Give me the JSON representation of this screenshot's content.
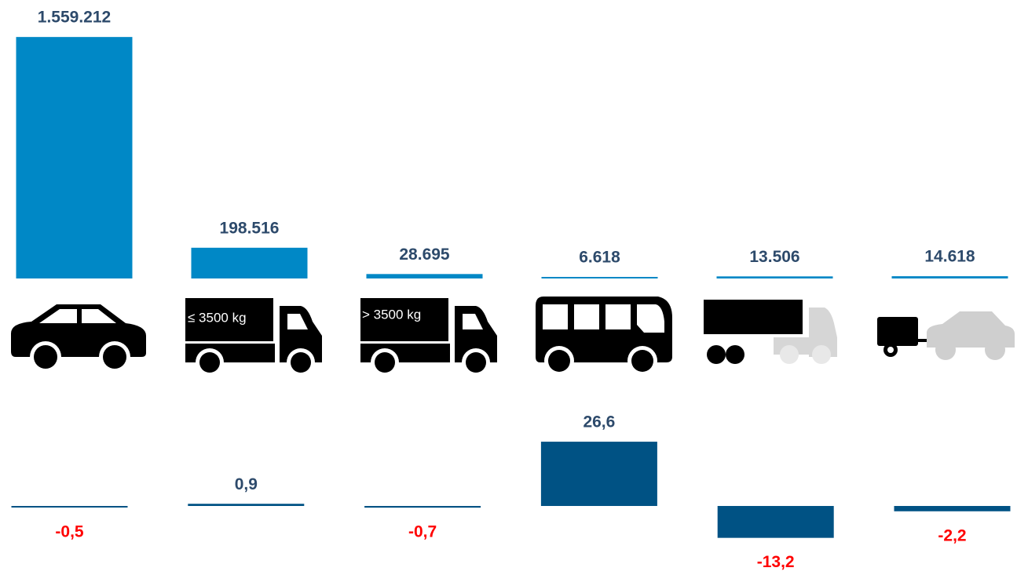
{
  "chart_data": [
    {
      "type": "bar",
      "categories": [
        null,
        null,
        null,
        null,
        null,
        null
      ],
      "values": [
        1559212,
        198516,
        28695,
        6618,
        13506,
        14618
      ],
      "value_labels": [
        "1.559.212",
        "198.516",
        "28.695",
        "6.618",
        "13.506",
        "14.618"
      ],
      "color": "#0088c6",
      "label_color": "#2d4a6b",
      "ylim": [
        0,
        1560000
      ]
    },
    {
      "type": "bar",
      "categories": [
        null,
        null,
        null,
        null,
        null,
        null
      ],
      "values": [
        -0.5,
        0.9,
        -0.7,
        26.6,
        -13.2,
        -2.2
      ],
      "value_labels": [
        "-0,5",
        "0,9",
        "-0,7",
        "26,6",
        "-13,2",
        "-2,2"
      ],
      "color": "#005284",
      "label_color": "#2d4a6b",
      "negative_label_color": "#ff0000",
      "ylim": [
        -20,
        30
      ]
    }
  ],
  "icon_labels": [
    "≤ 3500 kg",
    "> 3500 kg"
  ]
}
